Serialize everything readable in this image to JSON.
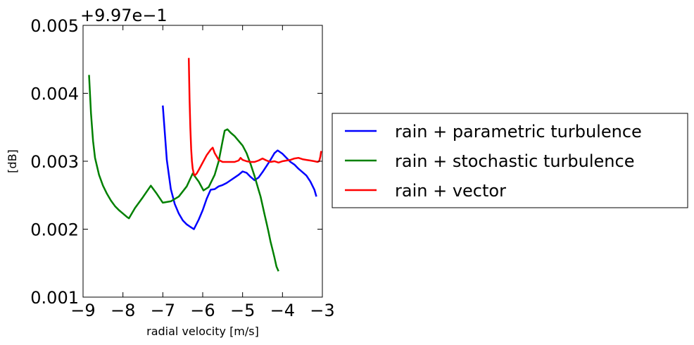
{
  "chart_data": {
    "type": "line",
    "title": "",
    "xlabel": "radial velocity [m/s]",
    "ylabel": "[dB]",
    "y_offset_label": "+9.97e−1",
    "xlim": [
      -9,
      -3
    ],
    "ylim": [
      0.001,
      0.005
    ],
    "xticks": [
      -9,
      -8,
      -7,
      -6,
      -5,
      -4,
      -3
    ],
    "xtick_labels": [
      "−9",
      "−8",
      "−7",
      "−6",
      "−5",
      "−4",
      "−3"
    ],
    "yticks": [
      0.001,
      0.002,
      0.003,
      0.004,
      0.005
    ],
    "ytick_labels": [
      "0.001",
      "0.002",
      "0.003",
      "0.004",
      "0.005"
    ],
    "grid": false,
    "legend_position": "outside-right",
    "series": [
      {
        "name": "rain + parametric turbulence",
        "color": "#0000ff",
        "x": [
          -7.0,
          -6.9,
          -6.8,
          -6.7,
          -6.6,
          -6.5,
          -6.4,
          -6.3,
          -6.22,
          -6.1,
          -6.0,
          -5.9,
          -5.8,
          -5.7,
          -5.6,
          -5.5,
          -5.4,
          -5.3,
          -5.2,
          -5.1,
          -5.0,
          -4.9,
          -4.8,
          -4.7,
          -4.6,
          -4.5,
          -4.4,
          -4.3,
          -4.2,
          -4.12,
          -4.0,
          -3.9,
          -3.8,
          -3.7,
          -3.6,
          -3.5,
          -3.4,
          -3.3,
          -3.2,
          -3.15
        ],
        "y": [
          0.00382,
          0.00302,
          0.00259,
          0.00237,
          0.00223,
          0.00213,
          0.00207,
          0.00203,
          0.002,
          0.00214,
          0.00228,
          0.00245,
          0.00258,
          0.00259,
          0.00263,
          0.00265,
          0.00268,
          0.00272,
          0.00276,
          0.0028,
          0.00285,
          0.00283,
          0.00277,
          0.00272,
          0.00276,
          0.00284,
          0.00293,
          0.00302,
          0.00312,
          0.00316,
          0.00311,
          0.00305,
          0.00299,
          0.00295,
          0.00289,
          0.00284,
          0.00279,
          0.0027,
          0.00258,
          0.00248
        ]
      },
      {
        "name": "rain + stochastic turbulence",
        "color": "#008000",
        "x": [
          -8.85,
          -8.8,
          -8.75,
          -8.7,
          -8.6,
          -8.5,
          -8.4,
          -8.3,
          -8.2,
          -8.1,
          -8.0,
          -7.9,
          -7.85,
          -7.7,
          -7.5,
          -7.3,
          -7.15,
          -7.0,
          -6.8,
          -6.6,
          -6.4,
          -6.25,
          -6.1,
          -5.98,
          -5.85,
          -5.7,
          -5.6,
          -5.5,
          -5.45,
          -5.38,
          -5.3,
          -5.2,
          -5.1,
          -5.0,
          -4.9,
          -4.8,
          -4.7,
          -4.6,
          -4.55,
          -4.5,
          -4.45,
          -4.4,
          -4.35,
          -4.3,
          -4.25,
          -4.2,
          -4.15,
          -4.1
        ],
        "y": [
          0.00427,
          0.0037,
          0.0033,
          0.00305,
          0.0028,
          0.00264,
          0.00252,
          0.00242,
          0.00234,
          0.00228,
          0.00223,
          0.00218,
          0.00216,
          0.00231,
          0.00247,
          0.00264,
          0.00252,
          0.00239,
          0.00241,
          0.00248,
          0.00263,
          0.00282,
          0.0027,
          0.00257,
          0.00262,
          0.0028,
          0.003,
          0.0033,
          0.00345,
          0.00347,
          0.00342,
          0.00337,
          0.0033,
          0.00323,
          0.00312,
          0.00296,
          0.00278,
          0.00258,
          0.00248,
          0.00235,
          0.00222,
          0.00209,
          0.00196,
          0.00182,
          0.0017,
          0.00158,
          0.00145,
          0.00138
        ]
      },
      {
        "name": "rain + vector",
        "color": "#ff0000",
        "x": [
          -6.35,
          -6.33,
          -6.31,
          -6.29,
          -6.27,
          -6.25,
          -6.22,
          -6.2,
          -6.15,
          -6.1,
          -6.0,
          -5.9,
          -5.8,
          -5.75,
          -5.7,
          -5.6,
          -5.5,
          -5.4,
          -5.3,
          -5.2,
          -5.1,
          -5.05,
          -5.0,
          -4.9,
          -4.8,
          -4.7,
          -4.6,
          -4.5,
          -4.4,
          -4.3,
          -4.2,
          -4.1,
          -4.0,
          -3.9,
          -3.8,
          -3.7,
          -3.6,
          -3.5,
          -3.4,
          -3.3,
          -3.2,
          -3.12,
          -3.08,
          -3.05,
          -3.03
        ],
        "y": [
          0.00452,
          0.00392,
          0.0035,
          0.00318,
          0.003,
          0.00289,
          0.00281,
          0.00279,
          0.00282,
          0.00287,
          0.00298,
          0.00309,
          0.00317,
          0.0032,
          0.00312,
          0.00302,
          0.00299,
          0.00299,
          0.00299,
          0.00299,
          0.00301,
          0.00305,
          0.00302,
          0.003,
          0.00299,
          0.00299,
          0.00301,
          0.00304,
          0.00301,
          0.00299,
          0.003,
          0.00298,
          0.003,
          0.00301,
          0.00302,
          0.00304,
          0.00305,
          0.00303,
          0.00302,
          0.00301,
          0.003,
          0.00299,
          0.003,
          0.00307,
          0.00315
        ]
      }
    ]
  }
}
